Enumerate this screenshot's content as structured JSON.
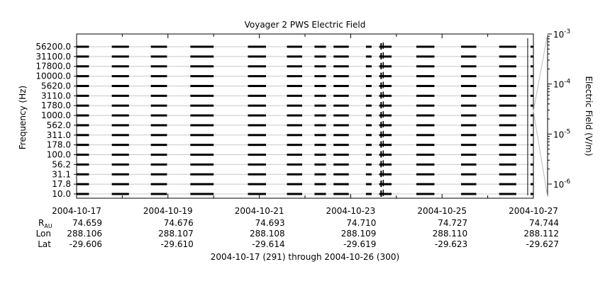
{
  "chart_data": {
    "type": "line",
    "title": "Voyager 2 PWS Electric Field",
    "ylabel": "Frequency (Hz)",
    "colorbar_label": "Electric Field (V/m)",
    "subtitle": "2004-10-17 (291) through 2004-10-26 (300)",
    "x_ticks": [
      "2004-10-17",
      "2004-10-19",
      "2004-10-21",
      "2004-10-23",
      "2004-10-25",
      "2004-10-27"
    ],
    "xlim": [
      "2004-10-17",
      "2004-10-27"
    ],
    "channels": [
      "10.0",
      "17.8",
      "31.1",
      "56.2",
      "100.0",
      "178.0",
      "311.0",
      "562.0",
      "1000.0",
      "1780.0",
      "3110.0",
      "5620.0",
      "10000.0",
      "17800.0",
      "31100.0",
      "56200.0"
    ],
    "colorbar_ticks": [
      "10^-6",
      "10^-5",
      "10^-4",
      "10^-3"
    ],
    "colorbar_range": [
      "1e-6",
      "1e-3"
    ],
    "colorbar_scale": "log",
    "data_intervals": [
      [
        "2004-10-17 00:00",
        "2004-10-17 06:30"
      ],
      [
        "2004-10-17 18:30",
        "2004-10-18 03:30"
      ],
      [
        "2004-10-18 15:00",
        "2004-10-18 23:30"
      ],
      [
        "2004-10-19 11:45",
        "2004-10-20 00:00"
      ],
      [
        "2004-10-20 18:00",
        "2004-10-21 03:30"
      ],
      [
        "2004-10-21 14:30",
        "2004-10-21 22:30"
      ],
      [
        "2004-10-22 05:00",
        "2004-10-22 11:00"
      ],
      [
        "2004-10-22 15:00",
        "2004-10-22 23:00"
      ],
      [
        "2004-10-23 08:00",
        "2004-10-23 11:00"
      ],
      [
        "2004-10-23 15:00",
        "2004-10-23 21:30"
      ],
      [
        "2004-10-24 10:30",
        "2004-10-24 20:00"
      ],
      [
        "2004-10-25 10:00",
        "2004-10-25 18:00"
      ],
      [
        "2004-10-26 06:00",
        "2004-10-26 15:00"
      ],
      [
        "2004-10-26 22:30",
        "2004-10-27 00:00"
      ]
    ],
    "ephemeris": {
      "rows": [
        {
          "label": "R",
          "sub": "AU",
          "values": [
            "74.659",
            "74.676",
            "74.693",
            "74.710",
            "74.727",
            "74.744"
          ]
        },
        {
          "label": "Lon",
          "sub": "",
          "values": [
            "288.106",
            "288.107",
            "288.108",
            "288.109",
            "288.110",
            "288.112"
          ]
        },
        {
          "label": "Lat",
          "sub": "",
          "values": [
            "-29.606",
            "-29.610",
            "-29.614",
            "-29.619",
            "-29.623",
            "-29.627"
          ]
        }
      ]
    }
  }
}
